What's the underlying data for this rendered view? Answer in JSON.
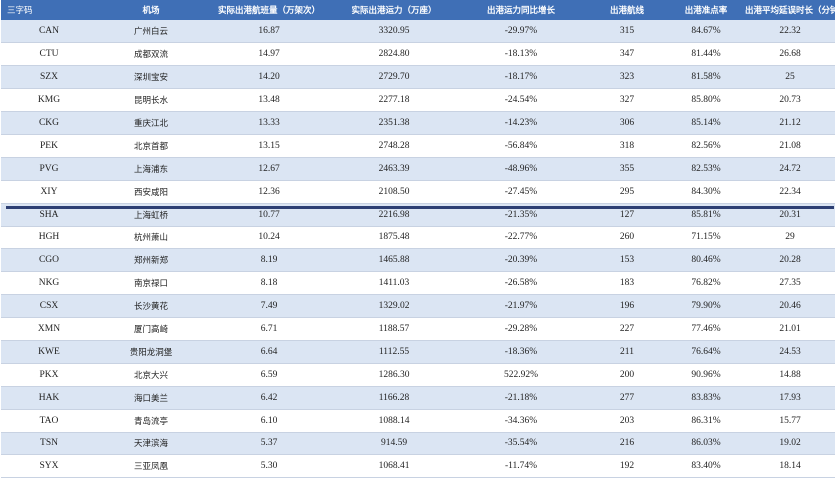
{
  "table": {
    "headers": [
      "三字码",
      "机场",
      "实际出港航班量（万架次）",
      "实际出港运力（万座）",
      "出港运力同比增长",
      "出港航线",
      "出港准点率",
      "出港平均延误时长（分钟）"
    ],
    "rows": [
      {
        "code": "CAN",
        "airport": "广州白云",
        "flights": "16.87",
        "capacity": "3320.95",
        "growth": "-29.97%",
        "routes": "315",
        "ontime": "84.67%",
        "delay": "22.32"
      },
      {
        "code": "CTU",
        "airport": "成都双流",
        "flights": "14.97",
        "capacity": "2824.80",
        "growth": "-18.13%",
        "routes": "347",
        "ontime": "81.44%",
        "delay": "26.68"
      },
      {
        "code": "SZX",
        "airport": "深圳宝安",
        "flights": "14.20",
        "capacity": "2729.70",
        "growth": "-18.17%",
        "routes": "323",
        "ontime": "81.58%",
        "delay": "25"
      },
      {
        "code": "KMG",
        "airport": "昆明长水",
        "flights": "13.48",
        "capacity": "2277.18",
        "growth": "-24.54%",
        "routes": "327",
        "ontime": "85.80%",
        "delay": "20.73"
      },
      {
        "code": "CKG",
        "airport": "重庆江北",
        "flights": "13.33",
        "capacity": "2351.38",
        "growth": "-14.23%",
        "routes": "306",
        "ontime": "85.14%",
        "delay": "21.12"
      },
      {
        "code": "PEK",
        "airport": "北京首都",
        "flights": "13.15",
        "capacity": "2748.28",
        "growth": "-56.84%",
        "routes": "318",
        "ontime": "82.56%",
        "delay": "21.08"
      },
      {
        "code": "PVG",
        "airport": "上海浦东",
        "flights": "12.67",
        "capacity": "2463.39",
        "growth": "-48.96%",
        "routes": "355",
        "ontime": "82.53%",
        "delay": "24.72"
      },
      {
        "code": "XIY",
        "airport": "西安咸阳",
        "flights": "12.36",
        "capacity": "2108.50",
        "growth": "-27.45%",
        "routes": "295",
        "ontime": "84.30%",
        "delay": "22.34"
      },
      {
        "code": "SHA",
        "airport": "上海虹桥",
        "flights": "10.77",
        "capacity": "2216.98",
        "growth": "-21.35%",
        "routes": "127",
        "ontime": "85.81%",
        "delay": "20.31"
      },
      {
        "code": "HGH",
        "airport": "杭州萧山",
        "flights": "10.24",
        "capacity": "1875.48",
        "growth": "-22.77%",
        "routes": "260",
        "ontime": "71.15%",
        "delay": "29"
      },
      {
        "code": "CGO",
        "airport": "郑州新郑",
        "flights": "8.19",
        "capacity": "1465.88",
        "growth": "-20.39%",
        "routes": "153",
        "ontime": "80.46%",
        "delay": "20.28"
      },
      {
        "code": "NKG",
        "airport": "南京禄口",
        "flights": "8.18",
        "capacity": "1411.03",
        "growth": "-26.58%",
        "routes": "183",
        "ontime": "76.82%",
        "delay": "27.35"
      },
      {
        "code": "CSX",
        "airport": "长沙黄花",
        "flights": "7.49",
        "capacity": "1329.02",
        "growth": "-21.97%",
        "routes": "196",
        "ontime": "79.90%",
        "delay": "20.46"
      },
      {
        "code": "XMN",
        "airport": "厦门高崎",
        "flights": "6.71",
        "capacity": "1188.57",
        "growth": "-29.28%",
        "routes": "227",
        "ontime": "77.46%",
        "delay": "21.01"
      },
      {
        "code": "KWE",
        "airport": "贵阳龙洞堡",
        "flights": "6.64",
        "capacity": "1112.55",
        "growth": "-18.36%",
        "routes": "211",
        "ontime": "76.64%",
        "delay": "24.53"
      },
      {
        "code": "PKX",
        "airport": "北京大兴",
        "flights": "6.59",
        "capacity": "1286.30",
        "growth": "522.92%",
        "routes": "200",
        "ontime": "90.96%",
        "delay": "14.88"
      },
      {
        "code": "HAK",
        "airport": "海口美兰",
        "flights": "6.42",
        "capacity": "1166.28",
        "growth": "-21.18%",
        "routes": "277",
        "ontime": "83.83%",
        "delay": "17.93"
      },
      {
        "code": "TAO",
        "airport": "青岛流亭",
        "flights": "6.10",
        "capacity": "1088.14",
        "growth": "-34.36%",
        "routes": "203",
        "ontime": "86.31%",
        "delay": "15.77"
      },
      {
        "code": "TSN",
        "airport": "天津滨海",
        "flights": "5.37",
        "capacity": "914.59",
        "growth": "-35.54%",
        "routes": "216",
        "ontime": "86.03%",
        "delay": "19.02"
      },
      {
        "code": "SYX",
        "airport": "三亚凤凰",
        "flights": "5.30",
        "capacity": "1068.41",
        "growth": "-11.74%",
        "routes": "192",
        "ontime": "83.40%",
        "delay": "18.14"
      }
    ]
  },
  "colors": {
    "header_bg": "#3f6fb6",
    "row_band": "#dbe5f3",
    "divider": "#2d3f73"
  }
}
